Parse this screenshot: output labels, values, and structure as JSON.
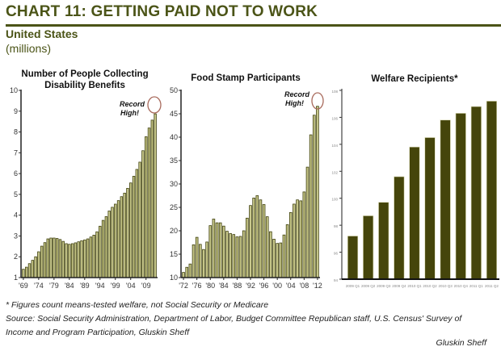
{
  "header": {
    "title": "CHART 11: GETTING PAID NOT TO WORK",
    "subtitle": "United States",
    "units": "(millions)"
  },
  "colors": {
    "brand": "#4b5417",
    "bar_fill_light": "#c9c98c",
    "bar_edge_dark": "#3f400c",
    "bar_fill_dark": "#45450b",
    "highlight_circle": "#a86a5c"
  },
  "chart_data": [
    {
      "type": "bar",
      "title": "Number of People Collecting Disability Benefits",
      "xlabel": "",
      "ylabel": "",
      "ylim": [
        1,
        10
      ],
      "yticks": [
        1,
        2,
        3,
        4,
        5,
        6,
        7,
        8,
        9,
        10
      ],
      "xtick_labels": [
        "'69",
        "'74",
        "'79",
        "'84",
        "'89",
        "'94",
        "'99",
        "'04",
        "'09"
      ],
      "xtick_years": [
        1969,
        1974,
        1979,
        1984,
        1989,
        1994,
        1999,
        2004,
        2009
      ],
      "annotation": [
        "Record",
        "High!"
      ],
      "categories": [
        1969,
        1970,
        1971,
        1972,
        1973,
        1974,
        1975,
        1976,
        1977,
        1978,
        1979,
        1980,
        1981,
        1982,
        1983,
        1984,
        1985,
        1986,
        1987,
        1988,
        1989,
        1990,
        1991,
        1992,
        1993,
        1994,
        1995,
        1996,
        1997,
        1998,
        1999,
        2000,
        2001,
        2002,
        2003,
        2004,
        2005,
        2006,
        2007,
        2008,
        2009,
        2010,
        2011,
        2012
      ],
      "values": [
        1.4,
        1.5,
        1.67,
        1.83,
        2.0,
        2.24,
        2.51,
        2.68,
        2.86,
        2.9,
        2.9,
        2.88,
        2.83,
        2.74,
        2.63,
        2.6,
        2.63,
        2.67,
        2.72,
        2.77,
        2.81,
        2.86,
        2.95,
        3.04,
        3.2,
        3.47,
        3.75,
        3.93,
        4.2,
        4.38,
        4.53,
        4.7,
        4.89,
        5.06,
        5.29,
        5.55,
        5.87,
        6.2,
        6.55,
        7.1,
        7.77,
        8.19,
        8.57,
        8.87
      ],
      "grid": false
    },
    {
      "type": "bar",
      "title": "Food Stamp Participants",
      "xlabel": "",
      "ylabel": "",
      "ylim": [
        10,
        50
      ],
      "yticks": [
        10,
        15,
        20,
        25,
        30,
        35,
        40,
        45,
        50
      ],
      "xtick_labels": [
        "'72",
        "'76",
        "'80",
        "'84",
        "'88",
        "'92",
        "'96",
        "'00",
        "'04",
        "'08",
        "'12"
      ],
      "xtick_years": [
        1972,
        1976,
        1980,
        1984,
        1988,
        1992,
        1996,
        2000,
        2004,
        2008,
        2012
      ],
      "annotation": [
        "Record",
        "High!"
      ],
      "categories": [
        1972,
        1973,
        1974,
        1975,
        1976,
        1977,
        1978,
        1979,
        1980,
        1981,
        1982,
        1983,
        1984,
        1985,
        1986,
        1987,
        1988,
        1989,
        1990,
        1991,
        1992,
        1993,
        1994,
        1995,
        1996,
        1997,
        1998,
        1999,
        2000,
        2001,
        2002,
        2003,
        2004,
        2005,
        2006,
        2007,
        2008,
        2009,
        2010,
        2011,
        2012
      ],
      "values": [
        11.1,
        12.2,
        12.9,
        17.0,
        18.6,
        17.1,
        16.0,
        17.6,
        21.1,
        22.5,
        21.7,
        21.7,
        21.0,
        19.9,
        19.4,
        19.2,
        18.7,
        18.8,
        20.0,
        22.7,
        25.4,
        27.0,
        27.5,
        26.6,
        25.6,
        23.0,
        19.8,
        18.2,
        17.3,
        17.4,
        19.1,
        21.3,
        23.9,
        25.7,
        26.6,
        26.4,
        28.3,
        33.6,
        40.5,
        44.7,
        46.6
      ],
      "grid": false
    },
    {
      "type": "bar",
      "title": "Welfare Recipients*",
      "xlabel": "",
      "ylabel": "",
      "ylim": [
        94,
        108
      ],
      "yticks": [
        94,
        96,
        98,
        100,
        102,
        104,
        106,
        108
      ],
      "categories": [
        "2009 Q1",
        "2009 Q2",
        "2009 Q3",
        "2009 Q4",
        "2010 Q1",
        "2010 Q2",
        "2010 Q3",
        "2010 Q4",
        "2011 Q1",
        "2011 Q2"
      ],
      "values": [
        97.2,
        98.7,
        99.7,
        101.6,
        103.8,
        104.5,
        105.8,
        106.3,
        106.8,
        107.2
      ],
      "grid": false
    }
  ],
  "footer": {
    "note": "* Figures count means-tested welfare, not Social Security or Medicare",
    "source_line1": "Source: Social Security Administration, Department of Labor, Budget Committee Republican staff, U.S. Census' Survey of",
    "source_line2": "Income and Program Participation, Gluskin Sheff",
    "credit": "Gluskin Sheff"
  }
}
